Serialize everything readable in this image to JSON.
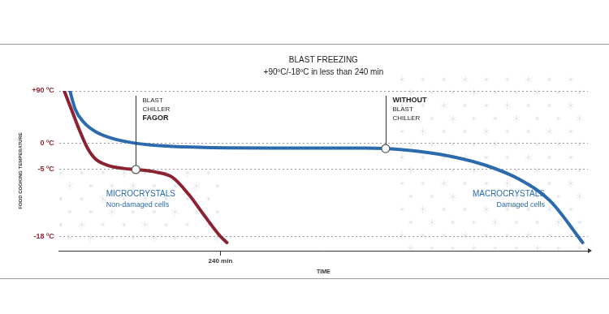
{
  "chart_data": {
    "type": "line",
    "title": "BLAST FREEZING",
    "subtitle": "+90ºC/-18ºC in less than 240 min",
    "x_label": "TIME",
    "y_label": "FOOD COOKING TEMPERATURE",
    "xlim": [
      -8,
      805
    ],
    "xticks": [
      {
        "value": 240,
        "label": "240 min"
      }
    ],
    "ylim": [
      -21,
      90
    ],
    "yticks": [
      {
        "value": 90,
        "label": "+90 ºC"
      },
      {
        "value": 0,
        "label": "0 ºC"
      },
      {
        "value": -5,
        "label": "-5 ºC"
      },
      {
        "value": -18,
        "label": "-18 ºC"
      }
    ],
    "grid": true,
    "series": [
      {
        "color": "#8b2332",
        "x": [
          0,
          11,
          23.5,
          36,
          48,
          67,
          92,
          110,
          141,
          166,
          191,
          215,
          240,
          250
        ],
        "values": [
          90,
          58,
          22,
          -1,
          -3,
          -4.2,
          -4.8,
          -5,
          -5.5,
          -6.5,
          -9.8,
          -13.9,
          -18,
          -19.3
        ]
      },
      {
        "color": "#2a6aad",
        "x": [
          8.7,
          17,
          30,
          48,
          73,
          110,
          153,
          215,
          339,
          463,
          494,
          549,
          599,
          648,
          698,
          747,
          797
        ],
        "values": [
          90,
          58,
          36,
          20,
          8.7,
          0,
          -0.5,
          -0.8,
          -0.9,
          -0.9,
          -1,
          -1.6,
          -2.6,
          -4.2,
          -6.8,
          -11.1,
          -19.3
        ]
      }
    ],
    "annotations": [
      {
        "lines": [
          "BLAST",
          "CHILLER",
          "FAGOR"
        ],
        "x": 110,
        "y": -5
      },
      {
        "lines": [
          "WITHOUT",
          "BLAST",
          "CHILLER"
        ],
        "x": 494,
        "y": -1
      }
    ],
    "regions": [
      {
        "title": "MICROCRYSTALS",
        "subtitle": "Non-damaged cells"
      },
      {
        "title": "MACROCRYSTALS",
        "subtitle": "Damaged cells"
      }
    ]
  }
}
